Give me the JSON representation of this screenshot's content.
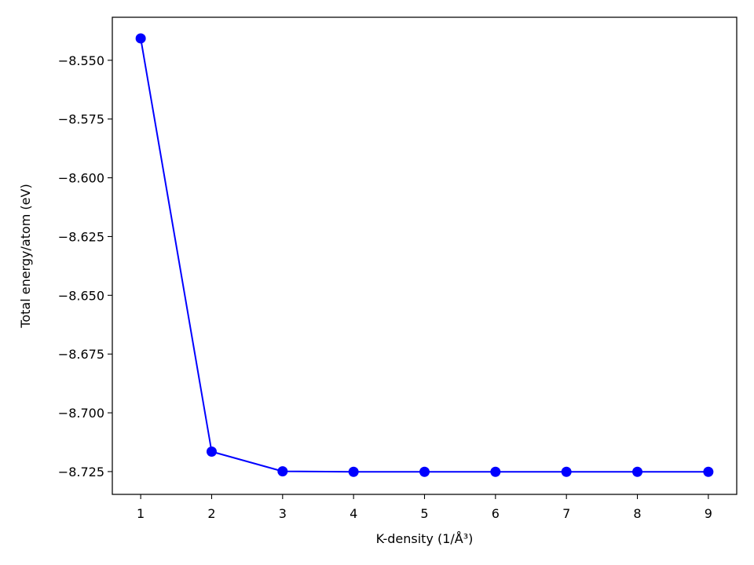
{
  "chart_data": {
    "type": "line",
    "title": "",
    "xlabel": "K-density (1/Å³)",
    "ylabel": "Total energy/atom (eV)",
    "x": [
      1,
      2,
      3,
      4,
      5,
      6,
      7,
      8,
      9
    ],
    "series": [
      {
        "values": [
          -8.5407,
          -8.7165,
          -8.7249,
          -8.7251,
          -8.7251,
          -8.7251,
          -8.7251,
          -8.7251,
          -8.7251
        ],
        "color": "#0000ff",
        "marker": "circle"
      }
    ],
    "xlim": [
      0.6,
      9.4
    ],
    "ylim": [
      -8.7347,
      -8.5317
    ],
    "xticks": [
      1,
      2,
      3,
      4,
      5,
      6,
      7,
      8,
      9
    ],
    "xtick_labels": [
      "1",
      "2",
      "3",
      "4",
      "5",
      "6",
      "7",
      "8",
      "9"
    ],
    "yticks": [
      -8.55,
      -8.575,
      -8.6,
      -8.625,
      -8.65,
      -8.675,
      -8.7,
      -8.725
    ],
    "ytick_labels": [
      "−8.550",
      "−8.575",
      "−8.600",
      "−8.625",
      "−8.650",
      "−8.675",
      "−8.700",
      "−8.725"
    ],
    "grid": false,
    "legend": "none"
  }
}
